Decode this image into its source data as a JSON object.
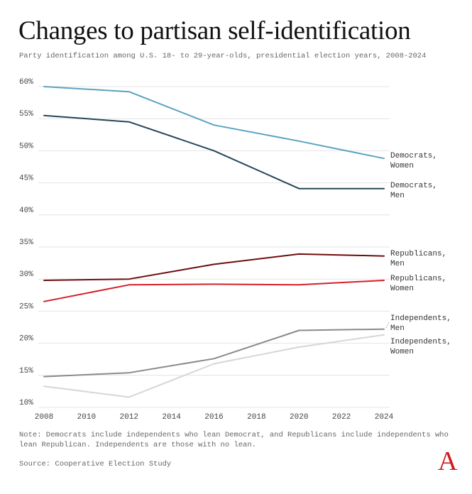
{
  "title": "Changes to partisan self-identification",
  "subtitle": "Party identification among U.S. 18- to 29-year-olds, presidential election years, 2008-2024",
  "note": "Note: Democrats include independents who lean Democrat, and Republicans include independents who lean Republican. Independents are those with no lean.",
  "source": "Source: Cooperative Election Study",
  "logo_text": "A",
  "chart_data": {
    "type": "line",
    "title": "Changes to partisan self-identification",
    "xlabel": "",
    "ylabel": "",
    "xlim": [
      2008,
      2024
    ],
    "ylim": [
      10,
      60
    ],
    "x_ticks": [
      2008,
      2010,
      2012,
      2014,
      2016,
      2018,
      2020,
      2022,
      2024
    ],
    "x_tick_labels": [
      "2008",
      "2010",
      "2012",
      "2014",
      "2016",
      "2018",
      "2020",
      "2022",
      "2024"
    ],
    "y_ticks": [
      10,
      15,
      20,
      25,
      30,
      35,
      40,
      45,
      50,
      55,
      60
    ],
    "y_tick_labels": [
      "10%",
      "15%",
      "20%",
      "25%",
      "30%",
      "35%",
      "40%",
      "45%",
      "50%",
      "55%",
      "60%"
    ],
    "grid": true,
    "x": [
      2008,
      2012,
      2016,
      2020,
      2024
    ],
    "series": [
      {
        "name": "Democrats, Women",
        "label_lines": [
          "Democrats,",
          "Women"
        ],
        "color": "#5ba3c1",
        "values": [
          60.0,
          59.2,
          54.0,
          51.5,
          48.8
        ]
      },
      {
        "name": "Democrats, Men",
        "label_lines": [
          "Democrats,",
          "Men"
        ],
        "color": "#25465a",
        "values": [
          55.5,
          54.5,
          50.0,
          44.1,
          44.1
        ]
      },
      {
        "name": "Republicans, Men",
        "label_lines": [
          "Republicans,",
          "Men"
        ],
        "color": "#6e0d0d",
        "values": [
          29.8,
          30.0,
          32.3,
          33.9,
          33.6
        ]
      },
      {
        "name": "Republicans, Women",
        "label_lines": [
          "Republicans,",
          "Women"
        ],
        "color": "#d51f29",
        "values": [
          26.5,
          29.1,
          29.2,
          29.1,
          29.8
        ]
      },
      {
        "name": "Independents, Men",
        "label_lines": [
          "Independents,",
          "Men"
        ],
        "color": "#8a8a8a",
        "values": [
          14.8,
          15.4,
          17.6,
          22.0,
          22.2
        ]
      },
      {
        "name": "Independents, Women",
        "label_lines": [
          "Independents,",
          "Women"
        ],
        "color": "#d6d6d6",
        "values": [
          13.3,
          11.6,
          16.8,
          19.4,
          21.3
        ]
      }
    ]
  }
}
